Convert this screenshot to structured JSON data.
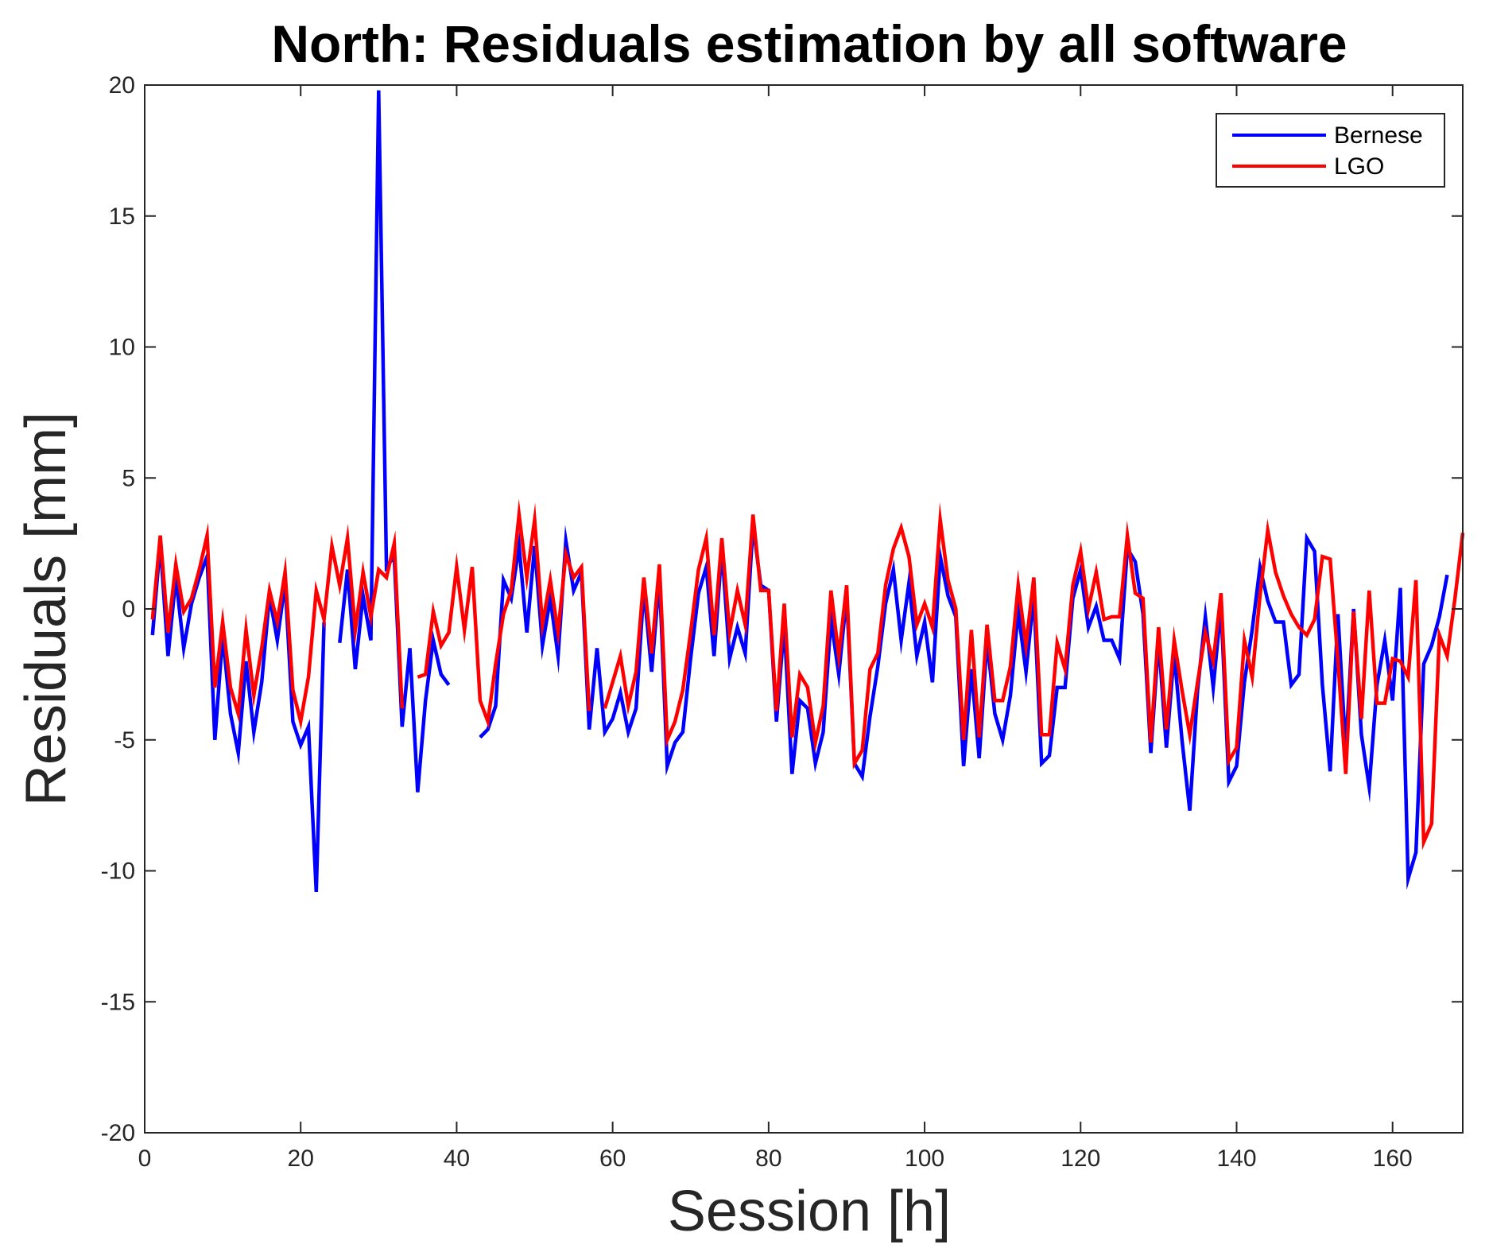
{
  "chart_data": {
    "type": "line",
    "title": "North: Residuals estimation by all software",
    "xlabel": "Session [h]",
    "ylabel": "Residuals [mm]",
    "xlim": [
      0,
      169
    ],
    "ylim": [
      -20,
      20
    ],
    "xticks": [
      0,
      20,
      40,
      60,
      80,
      100,
      120,
      140,
      160
    ],
    "yticks": [
      20,
      15,
      10,
      5,
      0,
      -5,
      -10,
      -15,
      -20
    ],
    "xtick_labels": [
      "0",
      "20",
      "40",
      "60",
      "80",
      "100",
      "120",
      "140",
      "160"
    ],
    "ytick_labels": [
      "20",
      "15",
      "10",
      "5",
      "0",
      "-5",
      "-10",
      "-15",
      "-20"
    ],
    "grid": false,
    "legend_position": "top-right",
    "series": [
      {
        "name": "Bernese",
        "color": "#0000ff",
        "values": [
          -1.0,
          2.5,
          -1.8,
          1.2,
          -1.5,
          0.2,
          1.2,
          2.0,
          -5.0,
          -1.0,
          -4.0,
          -5.5,
          -2.0,
          -4.7,
          -2.8,
          0.5,
          -1.2,
          1.0,
          -4.3,
          -5.2,
          -4.5,
          -10.8,
          -0.5,
          null,
          -1.3,
          1.5,
          -2.3,
          0.5,
          -1.2,
          19.8,
          1.6,
          2.0,
          -4.5,
          -1.5,
          -7.0,
          -3.5,
          -1.2,
          -2.5,
          -2.9,
          null,
          null,
          null,
          -4.9,
          -4.6,
          -3.7,
          1.1,
          0.4,
          2.4,
          -0.9,
          2.4,
          -1.4,
          0.4,
          -1.8,
          2.6,
          0.7,
          1.4,
          -4.6,
          -1.5,
          -4.7,
          -4.2,
          -3.2,
          -4.7,
          -3.8,
          0.8,
          -2.4,
          1.2,
          -6.0,
          -5.1,
          -4.7,
          -1.9,
          0.6,
          1.6,
          -1.8,
          2.3,
          -1.9,
          -0.7,
          -1.7,
          3.2,
          0.9,
          0.7,
          -4.3,
          -0.6,
          -6.3,
          -3.5,
          -3.8,
          -5.9,
          -4.7,
          -0.4,
          -2.5,
          0.5,
          -5.9,
          -6.4,
          -4.1,
          -2.2,
          0.2,
          1.5,
          -1.2,
          1.0,
          -1.8,
          -0.5,
          -2.8,
          2.0,
          0.5,
          -0.3,
          -6.0,
          -2.3,
          -5.7,
          -1.2,
          -4.0,
          -5.0,
          -3.3,
          -0.1,
          -2.4,
          0.5,
          -5.9,
          -5.6,
          -3.0,
          -3.0,
          0.4,
          1.5,
          -0.7,
          0.1,
          -1.2,
          -1.2,
          -1.9,
          2.3,
          1.8,
          -0.2,
          -5.5,
          -1.2,
          -5.3,
          -1.7,
          -5.0,
          -7.7,
          -3.1,
          -0.3,
          -3.0,
          0.1,
          -6.6,
          -6.0,
          -2.8,
          -0.8,
          1.6,
          0.3,
          -0.5,
          -0.5,
          -2.9,
          -2.5,
          2.7,
          2.2,
          -2.9,
          -6.2,
          -0.2,
          -5.4,
          0.0,
          -4.8,
          -6.8,
          -2.9,
          -1.2,
          -3.5,
          0.8,
          -10.3,
          -9.3,
          -2.1,
          -1.4,
          -0.3,
          1.3
        ]
      },
      {
        "name": "LGO",
        "color": "#ff0000",
        "values": [
          -0.4,
          2.8,
          -0.9,
          1.7,
          -0.1,
          0.4,
          1.5,
          2.8,
          -3.0,
          -0.5,
          -3.0,
          -4.0,
          -0.8,
          -3.3,
          -1.5,
          0.7,
          -0.5,
          1.4,
          -3.1,
          -4.3,
          -2.6,
          0.7,
          -0.4,
          2.4,
          0.9,
          2.7,
          -0.8,
          1.4,
          -0.3,
          1.5,
          1.2,
          2.5,
          -3.8,
          null,
          -2.6,
          -2.5,
          -0.1,
          -1.4,
          -0.9,
          1.6,
          -0.8,
          1.6,
          -3.5,
          -4.3,
          -2.1,
          -0.2,
          0.7,
          3.6,
          1.2,
          3.4,
          -0.6,
          1.1,
          -0.9,
          2.1,
          1.2,
          1.6,
          -3.9,
          null,
          -3.8,
          -2.8,
          -1.8,
          -3.7,
          -2.4,
          1.2,
          -1.7,
          1.7,
          -5.0,
          -4.3,
          -3.1,
          -0.9,
          1.5,
          2.7,
          -1.0,
          2.7,
          -0.9,
          0.7,
          -0.6,
          3.6,
          0.7,
          0.7,
          -3.9,
          0.2,
          -4.9,
          -2.5,
          -3.0,
          -5.1,
          -3.7,
          0.7,
          -1.8,
          0.9,
          -5.9,
          -5.4,
          -2.3,
          -1.7,
          0.9,
          2.3,
          3.1,
          2.0,
          -0.6,
          0.2,
          -0.7,
          3.4,
          1.1,
          0.0,
          -5.0,
          -0.8,
          -4.9,
          -0.6,
          -3.5,
          -3.5,
          -2.2,
          0.9,
          -1.4,
          1.2,
          -4.8,
          -4.8,
          -1.3,
          -2.3,
          0.9,
          2.2,
          0.0,
          1.4,
          -0.4,
          -0.3,
          -0.3,
          2.8,
          0.6,
          0.4,
          -5.1,
          -0.7,
          -4.6,
          -1.2,
          -3.1,
          -4.8,
          -2.8,
          -0.9,
          -2.0,
          0.6,
          -5.8,
          -5.3,
          -1.2,
          -2.6,
          0.5,
          3.0,
          1.4,
          0.5,
          -0.2,
          -0.7,
          -1.0,
          -0.4,
          2.0,
          1.9,
          -2.0,
          -6.3,
          -0.1,
          -4.2,
          0.7,
          -3.6,
          -3.6,
          -1.9,
          -2.0,
          -2.6,
          1.1,
          -8.9,
          -8.2,
          -1.0,
          -1.8,
          0.4,
          2.9
        ]
      }
    ]
  }
}
